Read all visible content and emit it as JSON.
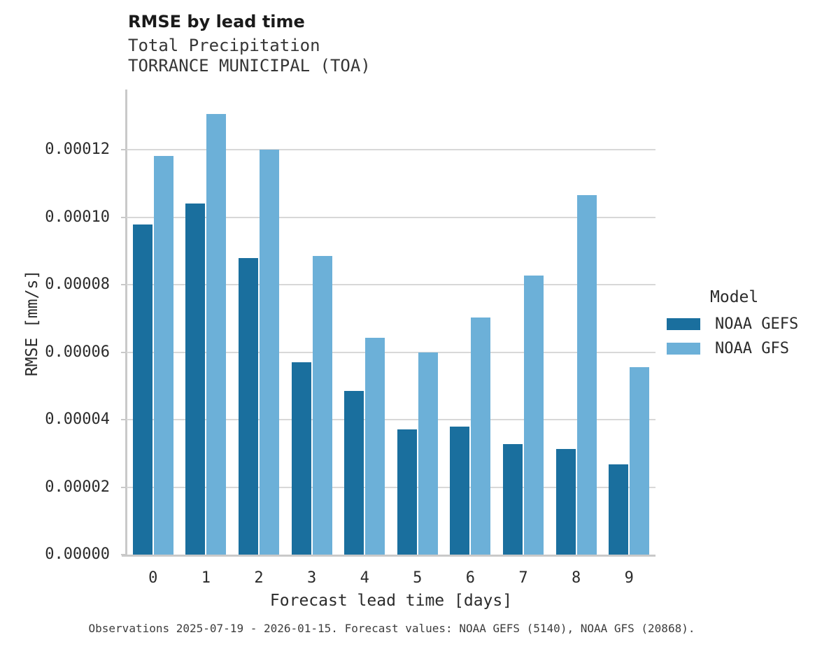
{
  "header": {
    "title": "RMSE by lead time",
    "subtitle1": "Total Precipitation",
    "subtitle2": "TORRANCE MUNICIPAL (TOA)"
  },
  "caption": "Observations 2025-07-19 - 2026-01-15. Forecast values: NOAA GEFS (5140), NOAA GFS (20868).",
  "colors": {
    "gefs_dark_blue": "#1a6f9e",
    "gfs_light_blue": "#6cb0d8",
    "gridline_gray": "#d8d8d8",
    "spine_gray": "#c9c9c9"
  },
  "chart_data": {
    "type": "bar",
    "title": "RMSE by lead time",
    "subtitle": [
      "Total Precipitation",
      "TORRANCE MUNICIPAL (TOA)"
    ],
    "xlabel": "Forecast lead time [days]",
    "ylabel": "RMSE [mm/s]",
    "categories": [
      "0",
      "1",
      "2",
      "3",
      "4",
      "5",
      "6",
      "7",
      "8",
      "9"
    ],
    "series": [
      {
        "name": "NOAA GEFS",
        "color": "#1a6f9e",
        "values": [
          9.78e-05,
          0.000104,
          8.78e-05,
          5.69e-05,
          4.84e-05,
          3.71e-05,
          3.79e-05,
          3.27e-05,
          3.12e-05,
          2.67e-05
        ]
      },
      {
        "name": "NOAA GFS",
        "color": "#6cb0d8",
        "values": [
          0.0001182,
          0.0001306,
          0.00012,
          8.84e-05,
          6.42e-05,
          6e-05,
          7.03e-05,
          8.27e-05,
          0.0001065,
          5.56e-05
        ]
      }
    ],
    "ylim": [
      0,
      0.000138
    ],
    "yticks": [
      0,
      2e-05,
      4e-05,
      6e-05,
      8e-05,
      0.0001,
      0.00012
    ],
    "ytick_labels": [
      "0.00000",
      "0.00002",
      "0.00004",
      "0.00006",
      "0.00008",
      "0.00010",
      "0.00012"
    ],
    "legend_title": "Model",
    "legend_position": "right",
    "grid": "horizontal",
    "caption": "Observations 2025-07-19 - 2026-01-15. Forecast values: NOAA GEFS (5140), NOAA GFS (20868)."
  }
}
